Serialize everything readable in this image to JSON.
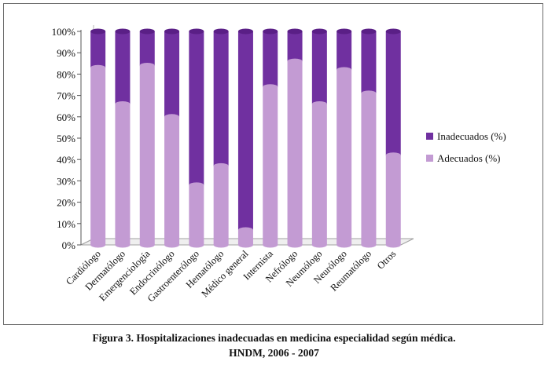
{
  "chart_data": {
    "type": "bar",
    "stacked": true,
    "style": "3d-cylinder",
    "categories": [
      "Cardiólogo",
      "Dermatólogo",
      "Emergenciología",
      "Endocrinólogo",
      "Gastroenterólogo",
      "Hematólogo",
      "Médico general",
      "Internista",
      "Nefrólogo",
      "Neumólogo",
      "Neurólogo",
      "Reumatólogo",
      "Otros"
    ],
    "series": [
      {
        "name": "Adecuados (%)",
        "color": "#c39bd3",
        "values": [
          83,
          66,
          84,
          60,
          28,
          37,
          7,
          74,
          86,
          66,
          82,
          71,
          42
        ]
      },
      {
        "name": "Inadecuados (%)",
        "color": "#7030a0",
        "values": [
          17,
          34,
          16,
          40,
          72,
          63,
          93,
          26,
          14,
          34,
          18,
          29,
          58
        ]
      }
    ],
    "ylim": [
      0,
      100
    ],
    "yticks": [
      "0%",
      "10%",
      "20%",
      "30%",
      "40%",
      "50%",
      "60%",
      "70%",
      "80%",
      "90%",
      "100%"
    ],
    "legend": [
      "Inadecuados (%)",
      "Adecuados (%)"
    ],
    "legend_position": "right",
    "grid": false
  },
  "caption": {
    "line1": "Figura 3. Hospitalizaciones inadecuadas en medicina especialidad según médica.",
    "line2": "HNDM, 2006 - 2007"
  }
}
